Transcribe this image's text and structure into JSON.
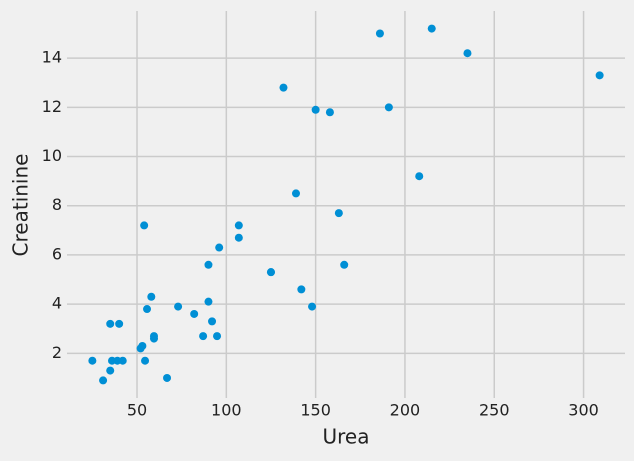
{
  "chart_data": {
    "type": "scatter",
    "x_label": "Urea",
    "y_label": "Creatinine",
    "color": "#008fd5",
    "grid": true,
    "xlim": [
      10.8,
      323.2
    ],
    "ylim": [
      0.185,
      15.915
    ],
    "xticks": [
      50,
      100,
      150,
      200,
      250,
      300
    ],
    "yticks": [
      2,
      4,
      6,
      8,
      10,
      12,
      14
    ],
    "x": [
      25,
      31,
      35,
      35,
      36,
      40,
      39,
      42,
      52,
      53,
      54,
      54.5,
      55.6,
      58,
      59.5,
      59.5,
      66.8,
      73,
      82,
      87,
      90,
      90,
      92,
      94.8,
      96,
      107,
      107,
      125,
      125,
      132,
      139,
      142,
      148,
      150,
      158,
      163,
      166,
      186,
      191,
      208,
      215,
      235,
      309
    ],
    "values": [
      1.7,
      0.9,
      3.2,
      1.3,
      1.7,
      3.2,
      1.7,
      1.7,
      2.2,
      2.3,
      7.2,
      1.7,
      3.8,
      4.3,
      2.7,
      2.6,
      1.0,
      3.9,
      3.6,
      2.7,
      5.6,
      4.1,
      3.3,
      2.7,
      6.3,
      7.2,
      6.7,
      5.3,
      5.3,
      12.8,
      8.5,
      4.6,
      3.9,
      11.9,
      11.8,
      7.7,
      5.6,
      15.0,
      12.0,
      9.2,
      15.2,
      14.2,
      13.3
    ]
  }
}
